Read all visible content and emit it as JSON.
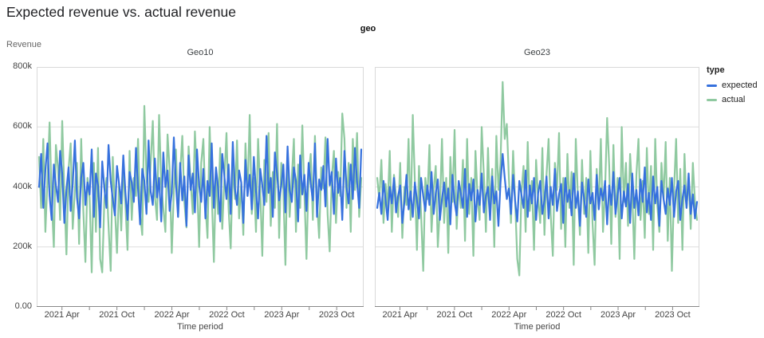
{
  "title": "Expected revenue vs. actual revenue",
  "facet_header": "geo",
  "y_axis_title": "Revenue",
  "legend": {
    "title": "type",
    "items": [
      {
        "label": "expected",
        "color": "#3671dd"
      },
      {
        "label": "actual",
        "color": "#8fc9a0"
      }
    ]
  },
  "style": {
    "grid": "#dddddd",
    "border": "#d9d9d9",
    "axis": "#888888",
    "accent_blue": "#3671dd",
    "accent_green": "#8fc9a0"
  },
  "chart_data": [
    {
      "type": "line",
      "facet": "Geo10",
      "xlabel": "Time period",
      "ylabel": "Revenue",
      "x_interval": "weekly",
      "x_start": "2021-01-15",
      "x_end": "2023-12-22",
      "unit": "thousands",
      "ylim_k": [
        0,
        800
      ],
      "y_ticks": [
        {
          "v": 0,
          "label": "0.00"
        },
        {
          "v": 200,
          "label": "200k"
        },
        {
          "v": 400,
          "label": "400k"
        },
        {
          "v": 600,
          "label": "600k"
        },
        {
          "v": 800,
          "label": "800k"
        }
      ],
      "x_tick_labels": [
        "2021 Apr",
        "2021 Oct",
        "2022 Apr",
        "2022 Oct",
        "2023 Apr",
        "2023 Oct"
      ],
      "series": [
        {
          "name": "expected",
          "color": "#3671dd",
          "values_k": [
            400,
            510,
            330,
            455,
            545,
            370,
            290,
            475,
            405,
            350,
            520,
            445,
            280,
            390,
            465,
            320,
            410,
            555,
            365,
            295,
            430,
            480,
            340,
            415,
            375,
            525,
            300,
            445,
            405,
            265,
            485,
            395,
            330,
            540,
            420,
            360,
            305,
            470,
            410,
            345,
            505,
            380,
            290,
            450,
            415,
            350,
            530,
            395,
            275,
            460,
            420,
            310,
            555,
            385,
            340,
            495,
            365,
            430,
            285,
            515,
            400,
            455,
            320,
            380,
            565,
            410,
            300,
            480,
            355,
            435,
            270,
            505,
            390,
            445,
            315,
            525,
            405,
            350,
            460,
            295,
            420,
            370,
            545,
            330,
            465,
            400,
            285,
            510,
            435,
            360,
            475,
            310,
            550,
            395,
            340,
            455,
            415,
            280,
            490,
            370,
            440,
            325,
            500,
            385,
            295,
            460,
            405,
            340,
            570,
            380,
            430,
            300,
            515,
            445,
            355,
            405,
            475,
            315,
            535,
            390,
            350,
            465,
            420,
            285,
            505,
            375,
            440,
            320,
            480,
            410,
            355,
            545,
            300,
            425,
            390,
            470,
            335,
            560,
            405,
            450,
            310,
            495,
            380,
            430,
            290,
            520,
            400,
            345,
            475,
            360,
            530,
            415,
            330,
            525
          ]
        },
        {
          "name": "actual",
          "color": "#8fc9a0",
          "values_k": [
            500,
            330,
            560,
            250,
            430,
            615,
            360,
            200,
            540,
            460,
            290,
            620,
            380,
            175,
            460,
            545,
            260,
            390,
            480,
            210,
            560,
            320,
            150,
            430,
            365,
            115,
            480,
            250,
            530,
            160,
            115,
            360,
            430,
            270,
            120,
            500,
            330,
            180,
            410,
            255,
            465,
            340,
            190,
            520,
            290,
            430,
            370,
            560,
            310,
            240,
            670,
            430,
            350,
            480,
            620,
            370,
            290,
            640,
            410,
            330,
            250,
            575,
            460,
            180,
            390,
            525,
            300,
            445,
            570,
            350,
            265,
            535,
            415,
            310,
            585,
            430,
            200,
            480,
            560,
            340,
            230,
            600,
            380,
            150,
            450,
            310,
            530,
            260,
            430,
            580,
            330,
            195,
            475,
            360,
            555,
            295,
            410,
            240,
            545,
            370,
            640,
            310,
            430,
            250,
            560,
            390,
            170,
            490,
            350,
            580,
            270,
            450,
            330,
            610,
            230,
            480,
            390,
            140,
            520,
            300,
            430,
            560,
            250,
            475,
            330,
            605,
            380,
            160,
            440,
            510,
            290,
            570,
            350,
            230,
            465,
            395,
            565,
            310,
            185,
            430,
            520,
            280,
            450,
            370,
            645,
            560,
            330,
            480,
            250,
            560,
            390,
            580,
            300,
            430
          ]
        }
      ]
    },
    {
      "type": "line",
      "facet": "Geo23",
      "xlabel": "Time period",
      "ylabel": "Revenue",
      "x_interval": "weekly",
      "x_start": "2021-01-15",
      "x_end": "2023-12-22",
      "unit": "thousands",
      "ylim_k": [
        0,
        800
      ],
      "y_ticks": [
        {
          "v": 0,
          "label": "0.00"
        },
        {
          "v": 200,
          "label": "200k"
        },
        {
          "v": 400,
          "label": "400k"
        },
        {
          "v": 600,
          "label": "600k"
        },
        {
          "v": 800,
          "label": "800k"
        }
      ],
      "x_tick_labels": [
        "2021 Apr",
        "2021 Oct",
        "2022 Apr",
        "2022 Oct",
        "2023 Apr",
        "2023 Oct"
      ],
      "series": [
        {
          "name": "expected",
          "color": "#3671dd",
          "values_k": [
            330,
            380,
            310,
            420,
            355,
            290,
            400,
            345,
            430,
            315,
            370,
            405,
            280,
            350,
            440,
            325,
            385,
            300,
            415,
            355,
            295,
            430,
            370,
            320,
            405,
            340,
            450,
            310,
            380,
            425,
            290,
            360,
            415,
            335,
            395,
            275,
            440,
            350,
            305,
            420,
            380,
            330,
            460,
            300,
            410,
            355,
            425,
            285,
            390,
            340,
            445,
            315,
            370,
            400,
            290,
            435,
            345,
            385,
            270,
            415,
            510,
            430,
            360,
            395,
            310,
            440,
            350,
            285,
            420,
            375,
            330,
            455,
            300,
            405,
            345,
            430,
            290,
            380,
            420,
            310,
            355,
            435,
            295,
            400,
            340,
            460,
            320,
            375,
            410,
            280,
            430,
            350,
            390,
            305,
            445,
            330,
            385,
            270,
            415,
            360,
            300,
            425,
            345,
            380,
            290,
            440,
            325,
            395,
            355,
            420,
            275,
            405,
            340,
            450,
            310,
            370,
            430,
            295,
            385,
            335,
            410,
            280,
            445,
            330,
            390,
            305,
            425,
            350,
            465,
            315,
            380,
            290,
            435,
            345,
            400,
            270,
            420,
            360,
            310,
            395,
            340,
            430,
            300,
            385,
            420,
            290,
            360,
            405,
            330,
            445,
            310,
            375,
            295,
            350
          ]
        },
        {
          "name": "actual",
          "color": "#8fc9a0",
          "values_k": [
            430,
            360,
            490,
            280,
            410,
            330,
            520,
            250,
            440,
            370,
            300,
            480,
            230,
            400,
            340,
            560,
            290,
            640,
            420,
            190,
            470,
            310,
            120,
            430,
            360,
            540,
            250,
            390,
            470,
            200,
            330,
            560,
            280,
            430,
            180,
            500,
            350,
            590,
            260,
            410,
            330,
            490,
            220,
            560,
            310,
            430,
            170,
            520,
            370,
            290,
            600,
            440,
            250,
            530,
            330,
            460,
            200,
            570,
            390,
            480,
            750,
            560,
            610,
            430,
            280,
            520,
            350,
            160,
            105,
            380,
            470,
            250,
            550,
            320,
            420,
            190,
            490,
            360,
            280,
            530,
            240,
            440,
            560,
            310,
            170,
            480,
            390,
            580,
            260,
            430,
            200,
            510,
            330,
            450,
            140,
            560,
            370,
            240,
            490,
            310,
            430,
            180,
            520,
            280,
            140,
            460,
            330,
            560,
            250,
            390,
            630,
            470,
            210,
            540,
            300,
            430,
            160,
            600,
            350,
            480,
            270,
            510,
            380,
            160,
            440,
            560,
            290,
            420,
            230,
            530,
            310,
            470,
            190,
            560,
            340,
            250,
            480,
            360,
            550,
            220,
            430,
            120,
            390,
            560,
            280,
            460,
            190,
            510,
            330,
            430,
            260,
            480,
            350,
            290
          ]
        }
      ]
    }
  ]
}
